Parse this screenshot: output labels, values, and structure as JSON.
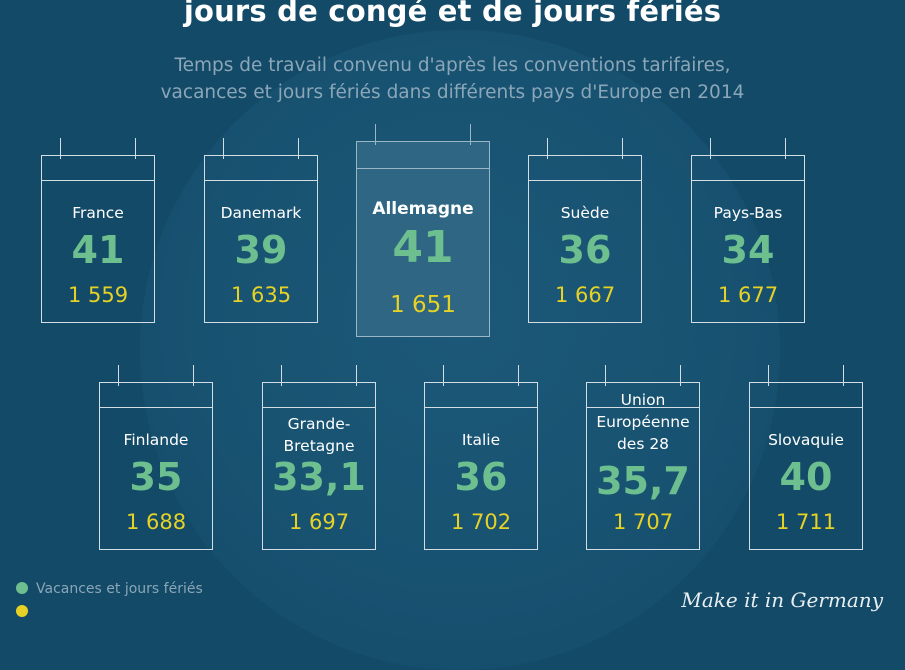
{
  "title": "jours de congé et de jours fériés",
  "subtitle_line1": "Temps de travail convenu d'après les conventions tarifaires,",
  "subtitle_line2": "vacances et jours fériés dans différents pays d'Europe en 2014",
  "countries": [
    {
      "name": "France",
      "days": "41",
      "hours": "1 559"
    },
    {
      "name": "Danemark",
      "days": "39",
      "hours": "1 635"
    },
    {
      "name": "Allemagne",
      "days": "41",
      "hours": "1 651"
    },
    {
      "name": "Suède",
      "days": "36",
      "hours": "1 667"
    },
    {
      "name": "Pays-Bas",
      "days": "34",
      "hours": "1 677"
    },
    {
      "name": "Finlande",
      "days": "35",
      "hours": "1 688"
    },
    {
      "name_line1": "Grande-",
      "name_line2": "Bretagne",
      "days": "33,1",
      "hours": "1 697"
    },
    {
      "name": "Italie",
      "days": "36",
      "hours": "1 702"
    },
    {
      "name_line1": "Union",
      "name_line2": "Européenne",
      "name_line3": "des 28",
      "days": "35,7",
      "hours": "1 707"
    },
    {
      "name": "Slovaquie",
      "days": "40",
      "hours": "1 711"
    }
  ],
  "legend": {
    "days_label": "Vacances et jours fériés",
    "days_color": "#6dbf8f",
    "hours_color": "#e6d226"
  },
  "brand": "Make it in Germany",
  "colors": {
    "background": "#134a67",
    "highlight": "#2f6683"
  }
}
